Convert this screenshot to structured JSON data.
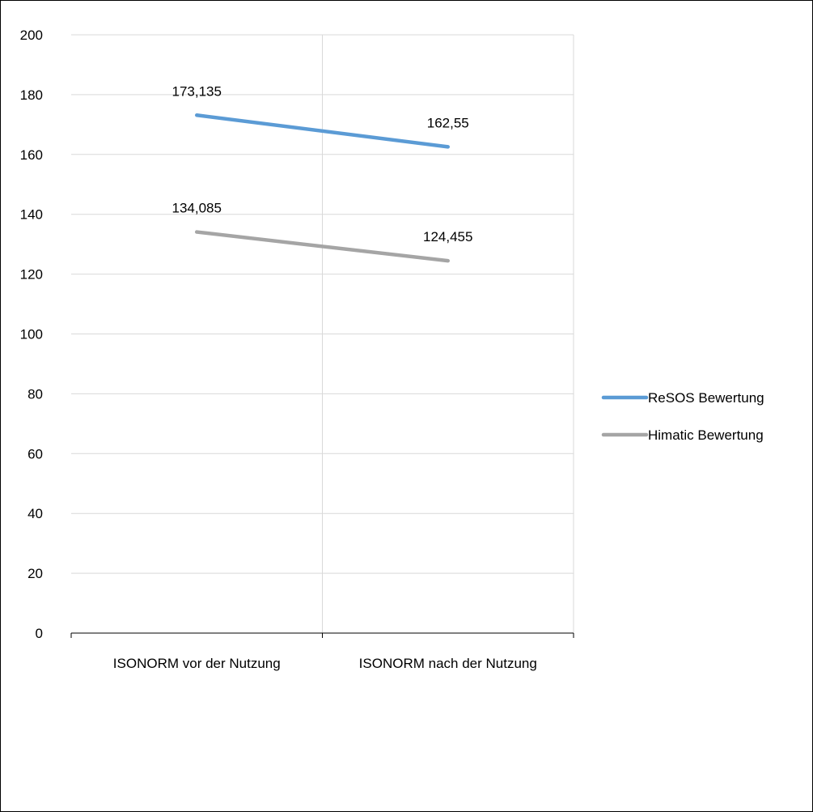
{
  "chart_data": {
    "type": "line",
    "title": "",
    "xlabel": "",
    "ylabel": "",
    "categories": [
      "ISONORM vor der Nutzung",
      "ISONORM nach der Nutzung"
    ],
    "y_ticks": [
      "0",
      "20",
      "40",
      "60",
      "80",
      "100",
      "120",
      "140",
      "160",
      "180",
      "200"
    ],
    "ylim": [
      0,
      200
    ],
    "grid": true,
    "legend_position": "right",
    "series": [
      {
        "name": "ReSOS Bewertung",
        "values": [
          173.135,
          162.55
        ],
        "labels": [
          "173,135",
          "162,55"
        ],
        "color": "#5b9bd5"
      },
      {
        "name": "Himatic Bewertung",
        "values": [
          134.085,
          124.455
        ],
        "labels": [
          "134,085",
          "124,455"
        ],
        "color": "#a5a5a5"
      }
    ]
  }
}
